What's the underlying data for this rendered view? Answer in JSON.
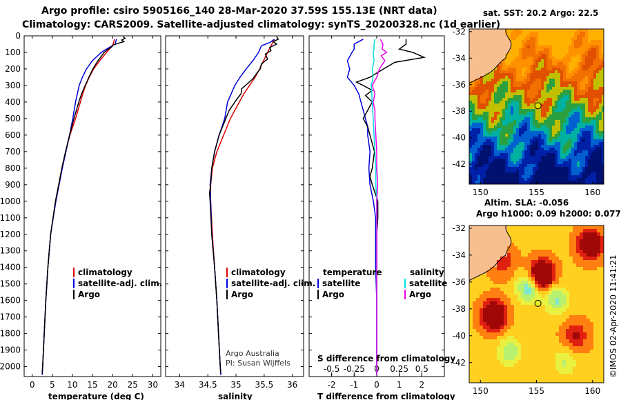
{
  "title_line1": "Argo profile: csiro 5905166_140 28-Mar-2020 37.59S 155.13E (NRT data)",
  "title_line2": "Climatology: CARS2009. Satellite-adjusted climatology: synTS_20200328.nc (1d earlier)",
  "side_text": "©IMOS 02-Apr-2020 11:41:21",
  "credit_line1": "Argo Australia",
  "credit_line2": "PI: Susan Wijffels",
  "colors": {
    "climatology": "#dd0000",
    "satellite": "#0000dd",
    "argo": "#000000",
    "sat_salinity": "#00e0e0",
    "argo_salinity": "#ee00ee",
    "land": "#f7be90"
  },
  "chart_data": [
    {
      "type": "line",
      "name": "temperature-profile",
      "xlabel": "temperature (deg C)",
      "xlim": [
        -2,
        32
      ],
      "xticks": [
        0,
        5,
        10,
        15,
        20,
        25,
        30
      ],
      "ylim": [
        0,
        2060
      ],
      "yticks": [
        0,
        100,
        200,
        300,
        400,
        500,
        600,
        700,
        800,
        900,
        1000,
        1100,
        1200,
        1300,
        1400,
        1500,
        1600,
        1700,
        1800,
        1900,
        2000
      ],
      "legend": [
        "climatology",
        "satellite-adj. clim.",
        "Argo"
      ],
      "series": [
        {
          "name": "climatology",
          "depth": [
            20,
            60,
            100,
            150,
            200,
            250,
            300,
            350,
            400,
            500,
            600,
            700,
            800,
            900,
            1000,
            1200,
            1400,
            1600,
            1800,
            2000,
            2050
          ],
          "values": [
            20.5,
            20.0,
            18.5,
            16.8,
            15.3,
            14.2,
            13.3,
            12.6,
            12.0,
            10.8,
            9.4,
            8.3,
            7.4,
            6.6,
            5.8,
            4.6,
            3.9,
            3.4,
            3.0,
            2.6,
            2.5
          ]
        },
        {
          "name": "satellite-adj. clim.",
          "depth": [
            20,
            50,
            80,
            100,
            150,
            200,
            250,
            300,
            400,
            500,
            600,
            700,
            800,
            900,
            1000,
            1200,
            1400,
            1600,
            1800,
            2000,
            2050
          ],
          "values": [
            21.0,
            20.6,
            18.5,
            17.2,
            15.0,
            13.5,
            12.5,
            11.7,
            10.8,
            10.1,
            9.3,
            8.4,
            7.5,
            6.7,
            5.9,
            4.6,
            3.9,
            3.4,
            3.0,
            2.6,
            2.5
          ]
        },
        {
          "name": "Argo",
          "depth": [
            5,
            15,
            25,
            35,
            45,
            55,
            70,
            85,
            100,
            130,
            160,
            200,
            250,
            300,
            350,
            400,
            450,
            500,
            600,
            700,
            800,
            900,
            1000,
            1200,
            1400,
            1600,
            1800,
            2000,
            2040
          ],
          "values": [
            22.6,
            23.1,
            22.3,
            22.8,
            21.4,
            20.2,
            19.6,
            18.7,
            17.9,
            17.0,
            16.1,
            15.1,
            14.1,
            13.2,
            12.3,
            11.6,
            11.0,
            10.4,
            9.3,
            8.3,
            7.4,
            6.6,
            5.8,
            4.6,
            3.9,
            3.4,
            3.0,
            2.6,
            2.5
          ]
        }
      ]
    },
    {
      "type": "line",
      "name": "salinity-profile",
      "xlabel": "salinity",
      "xlim": [
        33.75,
        36.2
      ],
      "xticks": [
        34,
        34.5,
        35,
        35.5,
        36
      ],
      "ylim": [
        0,
        2060
      ],
      "legend": [
        "climatology",
        "satellite-adj. clim.",
        "Argo"
      ],
      "series": [
        {
          "name": "climatology",
          "depth": [
            20,
            60,
            100,
            150,
            200,
            250,
            300,
            350,
            400,
            450,
            500,
            600,
            700,
            800,
            900,
            1000,
            1200,
            1400,
            1600,
            1800,
            2000,
            2050
          ],
          "values": [
            35.68,
            35.62,
            35.56,
            35.49,
            35.42,
            35.34,
            35.24,
            35.14,
            35.06,
            34.98,
            34.9,
            34.78,
            34.66,
            34.58,
            34.55,
            34.55,
            34.58,
            34.62,
            34.66,
            34.69,
            34.72,
            34.73
          ]
        },
        {
          "name": "satellite-adj. clim.",
          "depth": [
            20,
            40,
            60,
            100,
            150,
            200,
            250,
            300,
            400,
            500,
            600,
            700,
            800,
            900,
            1000,
            1200,
            1400,
            1600,
            1800,
            2000,
            2050
          ],
          "values": [
            35.68,
            35.6,
            35.45,
            35.4,
            35.3,
            35.18,
            35.07,
            34.98,
            34.85,
            34.8,
            34.7,
            34.62,
            34.57,
            34.54,
            34.55,
            34.57,
            34.62,
            34.66,
            34.69,
            34.72,
            34.73
          ]
        },
        {
          "name": "Argo",
          "depth": [
            5,
            20,
            35,
            50,
            70,
            90,
            110,
            140,
            170,
            200,
            230,
            260,
            290,
            320,
            350,
            380,
            410,
            450,
            500,
            600,
            700,
            800,
            900,
            950,
            1000,
            1200,
            1400,
            1600,
            1800,
            2000,
            2040
          ],
          "values": [
            35.72,
            35.75,
            35.66,
            35.72,
            35.6,
            35.62,
            35.52,
            35.56,
            35.45,
            35.43,
            35.36,
            35.3,
            35.2,
            35.1,
            35.09,
            35.02,
            34.96,
            34.88,
            34.82,
            34.7,
            34.62,
            34.57,
            34.55,
            34.53,
            34.54,
            34.57,
            34.62,
            34.66,
            34.69,
            34.72,
            34.73
          ]
        }
      ]
    },
    {
      "type": "line",
      "name": "difference-from-climatology",
      "xlabel": "T difference from climatology",
      "xlim": [
        -3,
        3
      ],
      "xticks": [
        -2,
        -1,
        0,
        1,
        2
      ],
      "secondary_xlabel": "S difference from climatology",
      "secondary_xticks": [
        "-0.5",
        "-0.25",
        "0",
        "0.25",
        "0.5"
      ],
      "ylim": [
        0,
        2060
      ],
      "legend": [
        "temperature satellite",
        "temperature Argo",
        "salinity satellite",
        "salinity Argo"
      ],
      "series": [
        {
          "name": "temperature satellite",
          "depth": [
            20,
            50,
            80,
            100,
            150,
            200,
            250,
            300,
            350,
            400,
            450,
            500,
            550,
            600,
            700,
            800,
            900,
            1000,
            1100,
            1200,
            1400,
            1600,
            1800,
            2000,
            2050
          ],
          "values": [
            -0.6,
            -1.0,
            -1.0,
            -1.1,
            -1.3,
            -1.2,
            -1.3,
            -1.0,
            -0.8,
            -0.7,
            -0.6,
            -0.5,
            -0.4,
            -0.4,
            -0.3,
            -0.35,
            -0.3,
            -0.15,
            -0.05,
            -0.05,
            -0.05,
            0.0,
            0.0,
            0.0,
            0.0
          ]
        },
        {
          "name": "temperature Argo",
          "depth": [
            20,
            50,
            80,
            100,
            130,
            160,
            200,
            250,
            280,
            300,
            330,
            360,
            400,
            450,
            500,
            550,
            600,
            650,
            700,
            800,
            850,
            900,
            1000,
            1100,
            1200,
            1400,
            1600,
            1800,
            2000,
            2050
          ],
          "values": [
            1.3,
            1.3,
            1.0,
            1.6,
            2.1,
            0.8,
            0.3,
            -0.3,
            -0.9,
            -0.6,
            -0.2,
            -0.5,
            -0.2,
            -0.4,
            -0.6,
            -0.4,
            -0.3,
            -0.2,
            -0.1,
            -0.2,
            -0.3,
            -0.2,
            0.05,
            0.05,
            0.0,
            0.0,
            0.0,
            0.0,
            0.0,
            0.0
          ]
        },
        {
          "name": "salinity satellite",
          "depth": [
            20,
            50,
            80,
            100,
            150,
            200,
            250,
            300,
            400,
            500,
            600,
            700,
            800,
            900,
            1000,
            1200,
            1400,
            1600,
            1800,
            2000,
            2050
          ],
          "values": [
            -0.02,
            -0.03,
            -0.03,
            -0.04,
            -0.03,
            -0.05,
            -0.04,
            -0.06,
            -0.05,
            -0.04,
            -0.03,
            -0.02,
            -0.01,
            -0.01,
            0.0,
            0.0,
            0.0,
            0.0,
            0.0,
            0.0,
            0.0
          ]
        },
        {
          "name": "salinity Argo",
          "depth": [
            20,
            50,
            80,
            100,
            120,
            150,
            200,
            250,
            300,
            350,
            400,
            450,
            500,
            600,
            700,
            800,
            900,
            1000,
            1200,
            1400,
            1600,
            1800,
            2000,
            2050
          ],
          "values": [
            0.04,
            0.07,
            0.06,
            0.11,
            0.05,
            0.09,
            0.03,
            0.0,
            -0.05,
            -0.02,
            -0.04,
            -0.02,
            -0.02,
            -0.01,
            0.0,
            0.0,
            0.01,
            0.0,
            0.0,
            0.0,
            0.0,
            0.0,
            0.0,
            0.0
          ]
        }
      ]
    },
    {
      "type": "heatmap",
      "name": "sat-sst-map",
      "title": "sat. SST: 20.2 Argo: 22.5",
      "xticks": [
        150,
        155,
        160
      ],
      "yticks": [
        -32,
        -34,
        -36,
        -38,
        -40,
        -42
      ],
      "xlim": [
        149,
        161
      ],
      "ylim": [
        -43.5,
        -31.8
      ],
      "marker": {
        "lon": 155.13,
        "lat": -37.59
      }
    },
    {
      "type": "heatmap",
      "name": "altim-sla-map",
      "title_line1": "Altim. SLA: -0.056",
      "title_line2": "Argo h1000: 0.09 h2000: 0.077",
      "xticks": [
        150,
        155,
        160
      ],
      "yticks": [
        -32,
        -34,
        -36,
        -38,
        -40,
        -42
      ],
      "xlim": [
        149,
        161
      ],
      "ylim": [
        -43.5,
        -31.8
      ],
      "marker": {
        "lon": 155.13,
        "lat": -37.59
      }
    }
  ]
}
